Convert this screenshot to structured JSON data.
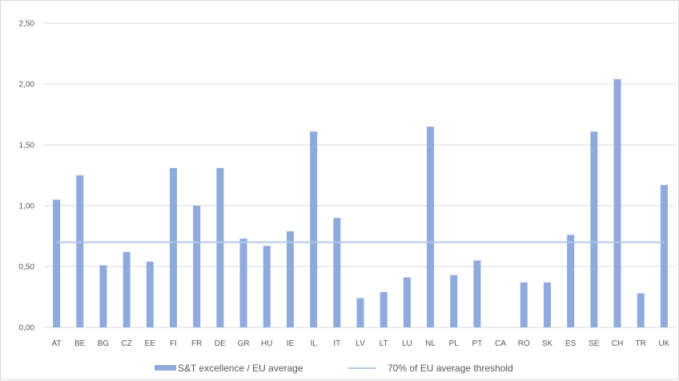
{
  "chart_data": {
    "type": "bar",
    "categories": [
      "AT",
      "BE",
      "BG",
      "CZ",
      "EE",
      "FI",
      "FR",
      "DE",
      "GR",
      "HU",
      "IE",
      "IL",
      "IT",
      "LV",
      "LT",
      "LU",
      "NL",
      "PL",
      "PT",
      "CA",
      "RO",
      "SK",
      "ES",
      "SE",
      "CH",
      "TR",
      "UK"
    ],
    "series": [
      {
        "name": "S&T excellence / EU average",
        "type": "bar",
        "color": "#8faadc",
        "values": [
          1.05,
          1.25,
          0.51,
          0.62,
          0.54,
          1.31,
          1.0,
          1.31,
          0.73,
          0.67,
          0.79,
          1.61,
          0.9,
          0.24,
          0.29,
          0.41,
          1.65,
          0.43,
          0.55,
          null,
          0.37,
          0.37,
          0.76,
          1.61,
          2.04,
          0.28,
          1.17
        ]
      },
      {
        "name": "70% of EU average threshold",
        "type": "line",
        "color": "#b4c7e7",
        "values": [
          0.7,
          0.7,
          0.7,
          0.7,
          0.7,
          0.7,
          0.7,
          0.7,
          0.7,
          0.7,
          0.7,
          0.7,
          0.7,
          0.7,
          0.7,
          0.7,
          0.7,
          0.7,
          0.7,
          0.7,
          0.7,
          0.7,
          0.7,
          0.7,
          0.7,
          0.7,
          0.7
        ]
      }
    ],
    "ylim": [
      0,
      2.5
    ],
    "yticks": [
      "0,00",
      "0,50",
      "1,00",
      "1,50",
      "2,00",
      "2,50"
    ],
    "ytick_values": [
      0,
      0.5,
      1.0,
      1.5,
      2.0,
      2.5
    ],
    "grid": true,
    "legend_position": "bottom"
  }
}
